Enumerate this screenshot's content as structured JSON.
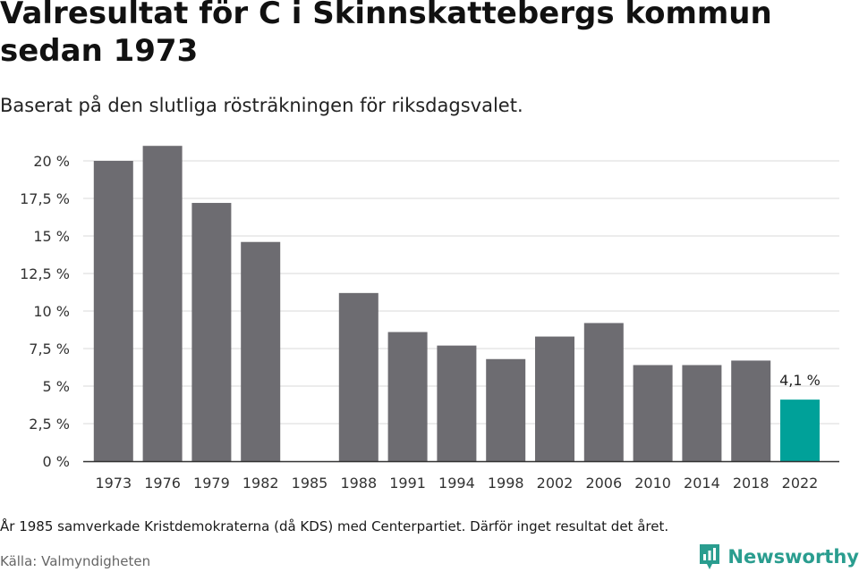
{
  "title": "Valresultat för C i Skinnskattebergs kommun sedan 1973",
  "subtitle": "Baserat på den slutliga rösträkningen för riksdagsvalet.",
  "note": "År 1985 samverkade Kristdemokraterna (då KDS) med Centerpartiet. Därför inget resultat det året.",
  "source": "Källa: Valmyndigheten",
  "brand": {
    "name": "Newsworthy",
    "icon": "newsworthy-logo-icon"
  },
  "colors": {
    "bar": "#6d6c71",
    "highlight": "#00a199",
    "grid": "#d9d9d9",
    "axis": "#333333",
    "brand": "#2a9d8f"
  },
  "chart_data": {
    "type": "bar",
    "categories": [
      "1973",
      "1976",
      "1979",
      "1982",
      "1985",
      "1988",
      "1991",
      "1994",
      "1998",
      "2002",
      "2006",
      "2010",
      "2014",
      "2018",
      "2022"
    ],
    "values": [
      20.0,
      21.0,
      17.2,
      14.6,
      null,
      11.2,
      8.6,
      7.7,
      6.8,
      8.3,
      9.2,
      6.4,
      6.4,
      6.7,
      4.1
    ],
    "ylim": [
      0,
      21
    ],
    "yticks": [
      0,
      2.5,
      5,
      7.5,
      10,
      12.5,
      15,
      17.5,
      20
    ],
    "ytick_labels": [
      "0 %",
      "2,5 %",
      "5 %",
      "7,5 %",
      "10 %",
      "12,5 %",
      "15 %",
      "17,5 %",
      "20 %"
    ],
    "highlight_index": 14,
    "highlight_label": "4,1 %",
    "grid": true
  }
}
